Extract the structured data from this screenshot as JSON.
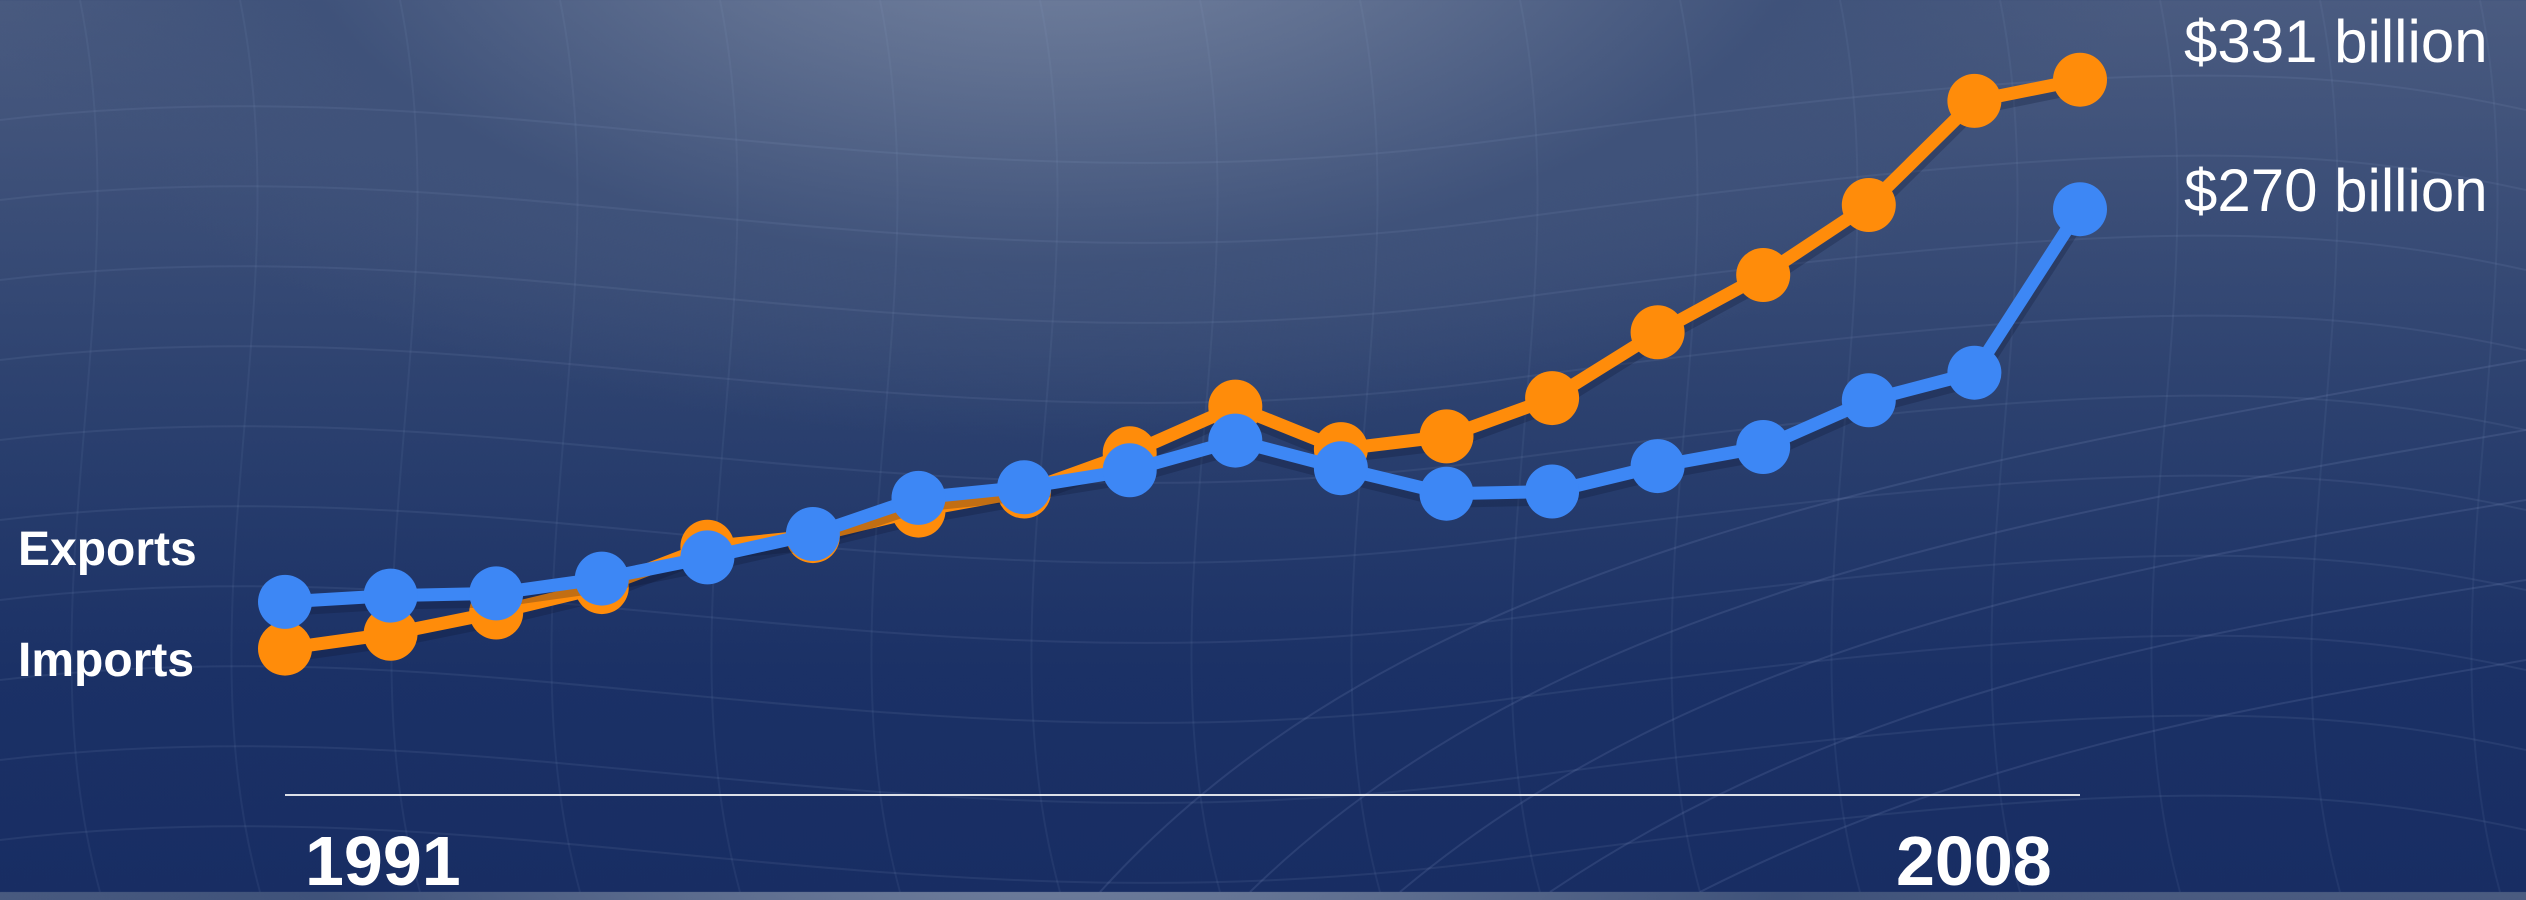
{
  "chart_data": {
    "type": "line",
    "x": [
      1991,
      1992,
      1993,
      1994,
      1995,
      1996,
      1997,
      1998,
      1999,
      2000,
      2001,
      2002,
      2003,
      2004,
      2005,
      2006,
      2007,
      2008
    ],
    "x_start_label": "1991",
    "x_end_label": "2008",
    "ylim": [
      60,
      345
    ],
    "grid": false,
    "series": [
      {
        "name": "Exports",
        "color": "#3d87f5",
        "end_label": "$270 billion",
        "values": [
          85,
          88,
          89,
          96,
          106,
          117,
          134,
          139,
          147,
          161,
          148,
          136,
          137,
          149,
          158,
          180,
          193,
          270
        ]
      },
      {
        "name": "Imports",
        "color": "#ff8c0a",
        "end_label": "$331 billion",
        "values": [
          63,
          70,
          80,
          92,
          111,
          116,
          128,
          137,
          155,
          177,
          157,
          163,
          181,
          212,
          239,
          272,
          321,
          331
        ]
      }
    ]
  }
}
